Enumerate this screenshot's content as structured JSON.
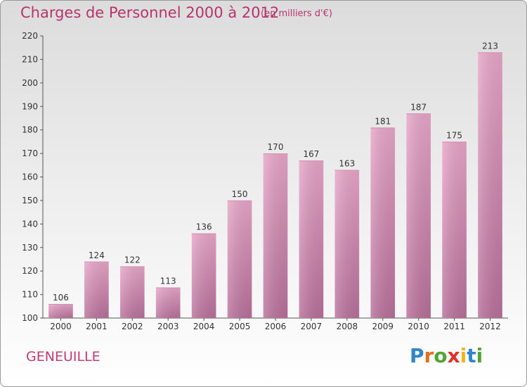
{
  "header": {
    "title": "Charges de Personnel 2000 à 2012",
    "subtitle": "(en milliers d'€)"
  },
  "footer": {
    "town": "GENEUILLE",
    "logo_letters": [
      "P",
      "r",
      "o",
      "x",
      "i",
      "t",
      "i"
    ],
    "logo_colors": [
      "#2f86c9",
      "#e96d1f",
      "#4fa636",
      "#e0322a",
      "#f2b418",
      "#2f86c9",
      "#4fa636"
    ]
  },
  "colors": {
    "bar_light": "#e7a6c8",
    "bar_dark": "#b8709a",
    "accent": "#b8336a"
  },
  "chart_data": {
    "type": "bar",
    "categories": [
      "2000",
      "2001",
      "2002",
      "2003",
      "2004",
      "2005",
      "2006",
      "2007",
      "2008",
      "2009",
      "2010",
      "2011",
      "2012"
    ],
    "values": [
      106,
      124,
      122,
      113,
      136,
      150,
      170,
      167,
      163,
      181,
      187,
      175,
      213
    ],
    "ylim": [
      100,
      220
    ],
    "yticks": [
      100,
      110,
      120,
      130,
      140,
      150,
      160,
      170,
      180,
      190,
      200,
      210,
      220
    ],
    "grid": false
  }
}
